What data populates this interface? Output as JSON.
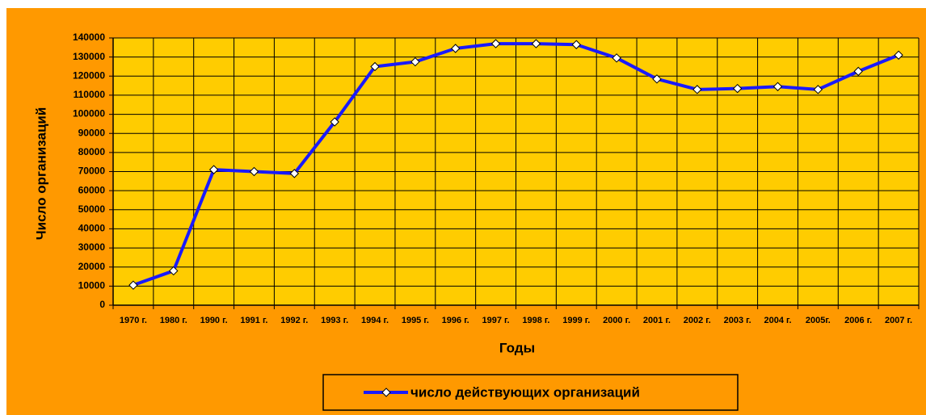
{
  "chart_data": {
    "type": "line",
    "y_label": "Число организаций",
    "x_label": "Годы",
    "categories": [
      "1970 г.",
      "1980 г.",
      "1990 г.",
      "1991 г.",
      "1992 г.",
      "1993 г.",
      "1994 г.",
      "1995 г.",
      "1996 г.",
      "1997 г.",
      "1998 г.",
      "1999 г.",
      "2000 г.",
      "2001 г.",
      "2002 г.",
      "2003 г.",
      "2004 г.",
      "2005г.",
      "2006 г.",
      "2007 г."
    ],
    "series": [
      {
        "name": "число действующих организаций",
        "color": "#1a1aff",
        "values": [
          10500,
          18000,
          71000,
          70000,
          69000,
          96000,
          125000,
          127500,
          134500,
          137000,
          137000,
          136500,
          129500,
          118500,
          113000,
          113500,
          114500,
          113000,
          122500,
          131000
        ]
      }
    ],
    "ylim": [
      0,
      140000
    ],
    "yticks": [
      0,
      10000,
      20000,
      30000,
      40000,
      50000,
      60000,
      70000,
      80000,
      90000,
      100000,
      110000,
      120000,
      130000,
      140000
    ],
    "grid": true
  }
}
